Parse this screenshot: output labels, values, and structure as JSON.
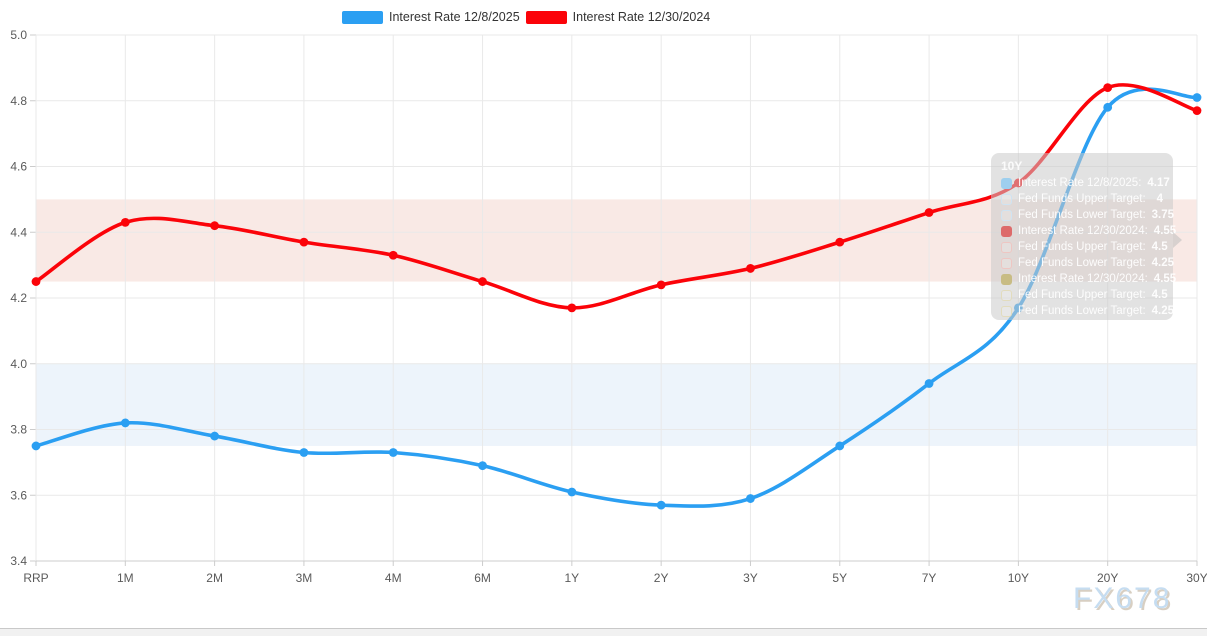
{
  "legend": {
    "items": [
      {
        "label": "Interest Rate 12/8/2025",
        "color": "#2b9ff2"
      },
      {
        "label": "Interest Rate 12/30/2024",
        "color": "#fb0309"
      }
    ]
  },
  "chart_data": {
    "type": "line",
    "categories": [
      "RRP",
      "1M",
      "2M",
      "3M",
      "4M",
      "6M",
      "1Y",
      "2Y",
      "3Y",
      "5Y",
      "7Y",
      "10Y",
      "20Y",
      "30Y"
    ],
    "series": [
      {
        "name": "Interest Rate 12/8/2025",
        "color": "#2b9ff2",
        "values": [
          3.75,
          3.82,
          3.78,
          3.73,
          3.73,
          3.69,
          3.61,
          3.57,
          3.59,
          3.75,
          3.94,
          4.17,
          4.78,
          4.81
        ],
        "band": {
          "name": "Fed Funds Target 12/8/2025",
          "lower": 3.75,
          "upper": 4.0,
          "color": "#edf4fb"
        }
      },
      {
        "name": "Interest Rate 12/30/2024",
        "color": "#fb0309",
        "values": [
          4.25,
          4.43,
          4.42,
          4.37,
          4.33,
          4.25,
          4.17,
          4.24,
          4.29,
          4.37,
          4.46,
          4.55,
          4.84,
          4.77
        ],
        "band": {
          "name": "Fed Funds Target 12/30/2024",
          "lower": 4.25,
          "upper": 4.5,
          "color": "#f9e9e5"
        }
      }
    ],
    "ylim": [
      3.4,
      5.0
    ],
    "yticks": [
      "5.0",
      "4.8",
      "4.6",
      "4.4",
      "4.2",
      "4.0",
      "3.8",
      "3.6",
      "3.4"
    ],
    "grid": true,
    "legend_position": "top-center",
    "title": "",
    "xlabel": "",
    "ylabel": ""
  },
  "tooltip": {
    "title": "10Y",
    "rows": [
      {
        "marker": "solid-blue",
        "label": "Interest Rate 12/8/2025:",
        "value": "4.17"
      },
      {
        "marker": "outline-blue",
        "label": "Fed Funds Upper Target:",
        "value": "4"
      },
      {
        "marker": "outline-blue",
        "label": "Fed Funds Lower Target:",
        "value": "3.75"
      },
      {
        "marker": "solid-red",
        "label": "Interest Rate 12/30/2024:",
        "value": "4.55"
      },
      {
        "marker": "outline-red",
        "label": "Fed Funds Upper Target:",
        "value": "4.5"
      },
      {
        "marker": "outline-red",
        "label": "Fed Funds Lower Target:",
        "value": "4.25"
      },
      {
        "marker": "solid-olive",
        "label": "Interest Rate 12/30/2024:",
        "value": "4.55"
      },
      {
        "marker": "outline-olive",
        "label": "Fed Funds Upper Target:",
        "value": "4.5"
      },
      {
        "marker": "outline-olive",
        "label": "Fed Funds Lower Target:",
        "value": "4.25"
      }
    ],
    "marker_colors": {
      "solid-blue": {
        "fill": "#9ecfee",
        "border": "#9ecfee"
      },
      "outline-blue": {
        "fill": "rgba(255,255,255,0.18)",
        "border": "#cfe3f2"
      },
      "solid-red": {
        "fill": "#dd6a6a",
        "border": "#dd6a6a"
      },
      "outline-red": {
        "fill": "rgba(255,255,255,0.18)",
        "border": "#eec6c2"
      },
      "solid-olive": {
        "fill": "#c8bc84",
        "border": "#c8bc84"
      },
      "outline-olive": {
        "fill": "rgba(255,255,255,0.18)",
        "border": "#e2dcbd"
      }
    }
  },
  "watermark": "FX678",
  "colors": {
    "grid_line": "#e9e9e9",
    "axis_line": "#cccccc",
    "axis_text": "#5a5a5a"
  }
}
